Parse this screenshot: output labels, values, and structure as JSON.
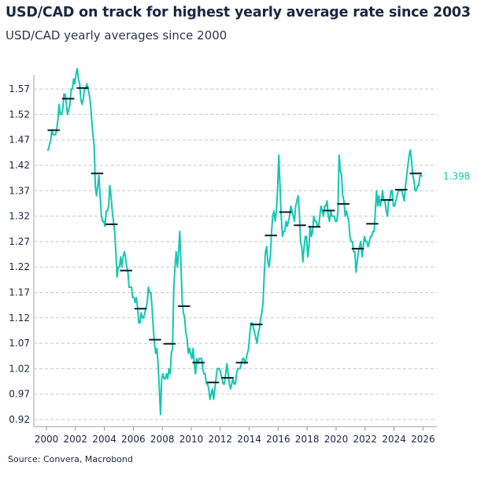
{
  "chart_data": {
    "type": "line",
    "title": "USD/CAD on track for highest yearly average rate since 2003",
    "subtitle": "USD/CAD yearly averages since 2000",
    "source": "Source: Convera, Macrobond",
    "xlabel": "",
    "ylabel": "",
    "xlim": [
      1999.8,
      2026.4
    ],
    "ylim": [
      0.905,
      1.63
    ],
    "x_ticks": [
      "2000",
      "2002",
      "2004",
      "2006",
      "2008",
      "2010",
      "2012",
      "2014",
      "2016",
      "2018",
      "2020",
      "2022",
      "2024",
      "2026"
    ],
    "y_ticks": [
      "0.92",
      "0.97",
      "1.02",
      "1.07",
      "1.12",
      "1.17",
      "1.22",
      "1.27",
      "1.32",
      "1.37",
      "1.42",
      "1.47",
      "1.52",
      "1.57"
    ],
    "grid": "horizontal dashed",
    "last_value_label": "1.398",
    "colors": {
      "line": "#12c7b2",
      "average": "#0d1a2b",
      "grid": "#c8c8c8"
    },
    "series": [
      {
        "kind": "monthly rate",
        "start": "2000-01",
        "values": [
          1.45,
          1.45,
          1.46,
          1.47,
          1.49,
          1.48,
          1.48,
          1.48,
          1.49,
          1.51,
          1.54,
          1.52,
          1.52,
          1.53,
          1.56,
          1.56,
          1.54,
          1.52,
          1.53,
          1.54,
          1.57,
          1.57,
          1.59,
          1.58,
          1.6,
          1.61,
          1.59,
          1.58,
          1.55,
          1.54,
          1.55,
          1.57,
          1.57,
          1.58,
          1.57,
          1.56,
          1.54,
          1.51,
          1.48,
          1.46,
          1.38,
          1.36,
          1.38,
          1.4,
          1.36,
          1.32,
          1.31,
          1.31,
          1.3,
          1.33,
          1.33,
          1.34,
          1.38,
          1.36,
          1.33,
          1.31,
          1.29,
          1.25,
          1.2,
          1.22,
          1.22,
          1.24,
          1.22,
          1.24,
          1.25,
          1.24,
          1.22,
          1.21,
          1.18,
          1.18,
          1.18,
          1.16,
          1.16,
          1.15,
          1.16,
          1.14,
          1.11,
          1.11,
          1.13,
          1.12,
          1.12,
          1.13,
          1.14,
          1.15,
          1.18,
          1.17,
          1.17,
          1.14,
          1.1,
          1.07,
          1.05,
          1.06,
          1.03,
          0.98,
          0.93,
          1.0,
          1.01,
          1.0,
          1.0,
          1.01,
          1.0,
          1.02,
          1.01,
          1.05,
          1.06,
          1.18,
          1.22,
          1.25,
          1.22,
          1.25,
          1.29,
          1.22,
          1.15,
          1.13,
          1.12,
          1.09,
          1.08,
          1.05,
          1.06,
          1.05,
          1.04,
          1.06,
          1.03,
          1.01,
          1.04,
          1.03,
          1.04,
          1.04,
          1.04,
          1.02,
          1.01,
          1.01,
          0.99,
          0.99,
          0.98,
          0.96,
          0.97,
          0.98,
          0.96,
          0.98,
          1.0,
          1.02,
          1.02,
          1.02,
          1.01,
          1.0,
          0.99,
          0.99,
          1.01,
          1.03,
          1.01,
          0.99,
          0.98,
          0.99,
          1.0,
          0.99,
          0.99,
          1.01,
          1.02,
          1.02,
          1.02,
          1.03,
          1.04,
          1.04,
          1.03,
          1.04,
          1.05,
          1.06,
          1.09,
          1.11,
          1.11,
          1.1,
          1.09,
          1.08,
          1.07,
          1.09,
          1.1,
          1.12,
          1.13,
          1.15,
          1.21,
          1.25,
          1.26,
          1.23,
          1.22,
          1.24,
          1.29,
          1.32,
          1.33,
          1.31,
          1.33,
          1.37,
          1.44,
          1.38,
          1.32,
          1.28,
          1.29,
          1.29,
          1.31,
          1.3,
          1.31,
          1.32,
          1.34,
          1.33,
          1.32,
          1.31,
          1.34,
          1.35,
          1.36,
          1.33,
          1.27,
          1.26,
          1.23,
          1.26,
          1.28,
          1.28,
          1.24,
          1.26,
          1.3,
          1.28,
          1.29,
          1.32,
          1.31,
          1.31,
          1.3,
          1.3,
          1.32,
          1.34,
          1.33,
          1.32,
          1.34,
          1.34,
          1.35,
          1.32,
          1.31,
          1.33,
          1.32,
          1.32,
          1.32,
          1.31,
          1.31,
          1.33,
          1.44,
          1.41,
          1.4,
          1.36,
          1.35,
          1.32,
          1.33,
          1.32,
          1.31,
          1.28,
          1.27,
          1.27,
          1.25,
          1.25,
          1.21,
          1.23,
          1.25,
          1.26,
          1.27,
          1.24,
          1.26,
          1.28,
          1.27,
          1.27,
          1.26,
          1.27,
          1.28,
          1.28,
          1.29,
          1.29,
          1.33,
          1.37,
          1.34,
          1.36,
          1.34,
          1.35,
          1.37,
          1.35,
          1.35,
          1.33,
          1.32,
          1.35,
          1.35,
          1.37,
          1.37,
          1.34,
          1.34,
          1.35,
          1.36,
          1.37,
          1.37,
          1.37,
          1.37,
          1.36,
          1.35,
          1.38,
          1.4,
          1.42,
          1.44,
          1.45,
          1.43,
          1.4,
          1.39,
          1.37,
          1.37,
          1.38,
          1.38,
          1.4,
          1.4,
          1.398
        ]
      },
      {
        "kind": "yearly average",
        "years": [
          2000,
          2001,
          2002,
          2003,
          2004,
          2005,
          2006,
          2007,
          2008,
          2009,
          2010,
          2011,
          2012,
          2013,
          2014,
          2015,
          2016,
          2017,
          2018,
          2019,
          2020,
          2021,
          2022,
          2023,
          2024,
          2025
        ],
        "values": [
          1.489,
          1.551,
          1.572,
          1.404,
          1.304,
          1.213,
          1.138,
          1.077,
          1.069,
          1.143,
          1.032,
          0.993,
          1.002,
          1.032,
          1.107,
          1.282,
          1.328,
          1.302,
          1.299,
          1.331,
          1.344,
          1.256,
          1.305,
          1.352,
          1.372,
          1.404
        ]
      }
    ]
  }
}
